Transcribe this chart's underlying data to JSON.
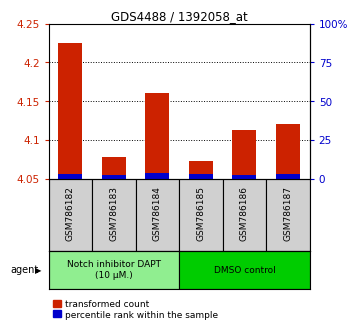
{
  "title": "GDS4488 / 1392058_at",
  "samples": [
    "GSM786182",
    "GSM786183",
    "GSM786184",
    "GSM786185",
    "GSM786186",
    "GSM786187"
  ],
  "transformed_counts": [
    4.225,
    4.078,
    4.16,
    4.072,
    4.113,
    4.12
  ],
  "percentile_ranks": [
    3.0,
    2.5,
    3.5,
    3.0,
    2.5,
    3.0
  ],
  "baseline": 4.05,
  "ylim_left": [
    4.05,
    4.25
  ],
  "ylim_right": [
    0,
    100
  ],
  "yticks_left": [
    4.05,
    4.1,
    4.15,
    4.2,
    4.25
  ],
  "yticks_right": [
    0,
    25,
    50,
    75,
    100
  ],
  "ytick_labels_right": [
    "0",
    "25",
    "50",
    "75",
    "100%"
  ],
  "group1_label": "Notch inhibitor DAPT\n(10 μM.)",
  "group2_label": "DMSO control",
  "group1_indices": [
    0,
    1,
    2
  ],
  "group2_indices": [
    3,
    4,
    5
  ],
  "group1_color": "#90EE90",
  "group2_color": "#00CC00",
  "bar_color_red": "#CC2200",
  "bar_color_blue": "#0000CC",
  "bar_width": 0.55,
  "legend_red_label": "transformed count",
  "legend_blue_label": "percentile rank within the sample",
  "agent_label": "agent",
  "left_tick_color": "#CC2200",
  "right_tick_color": "#0000CC",
  "grid_yticks": [
    4.1,
    4.15,
    4.2
  ],
  "sample_bg_color": "#D0D0D0"
}
